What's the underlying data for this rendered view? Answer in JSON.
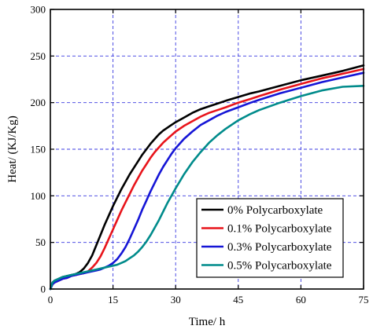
{
  "chart_data": {
    "type": "line",
    "title": "",
    "xlabel": "Time/ h",
    "ylabel": "Heat/ (KJ/Kg)",
    "xlim": [
      0,
      75
    ],
    "ylim": [
      0,
      300
    ],
    "xticks": [
      0,
      15,
      30,
      45,
      60,
      75
    ],
    "yticks": [
      0,
      50,
      100,
      150,
      200,
      250,
      300
    ],
    "grid": "dashed-blue",
    "legend_position": "bottom-right",
    "series": [
      {
        "name": "0% Polycarboxylate",
        "color": "#000000",
        "x": [
          0,
          0.5,
          1,
          2,
          3,
          4,
          5,
          6,
          7,
          8,
          9,
          10,
          11,
          12,
          13,
          14,
          15,
          16,
          17,
          18,
          19,
          20,
          21,
          22,
          23,
          24,
          25,
          26,
          27,
          28,
          29,
          30,
          32,
          34,
          36,
          38,
          40,
          42,
          45,
          48,
          50,
          55,
          60,
          65,
          70,
          75
        ],
        "y": [
          0,
          7,
          9,
          11,
          13,
          14,
          15,
          16,
          18,
          22,
          28,
          36,
          47,
          58,
          69,
          79,
          89,
          98,
          107,
          115,
          123,
          130,
          137,
          144,
          150,
          156,
          161,
          166,
          170,
          173,
          176,
          179,
          184,
          189,
          193,
          196,
          199,
          202,
          206,
          210,
          212,
          218,
          224,
          229,
          234,
          240
        ]
      },
      {
        "name": "0.1% Polycarboxylate",
        "color": "#e8141b",
        "x": [
          0,
          0.5,
          1,
          2,
          3,
          4,
          5,
          6,
          7,
          8,
          9,
          10,
          11,
          12,
          13,
          14,
          15,
          16,
          17,
          18,
          19,
          20,
          21,
          22,
          23,
          24,
          25,
          26,
          27,
          28,
          29,
          30,
          32,
          34,
          36,
          38,
          40,
          42,
          45,
          48,
          50,
          55,
          60,
          65,
          70,
          75
        ],
        "y": [
          0,
          5,
          7,
          9,
          11,
          12,
          14,
          15,
          16,
          17,
          19,
          23,
          28,
          35,
          44,
          54,
          64,
          74,
          84,
          93,
          102,
          111,
          119,
          127,
          134,
          141,
          147,
          152,
          157,
          161,
          165,
          169,
          175,
          180,
          185,
          189,
          192,
          195,
          200,
          204,
          207,
          214,
          220,
          226,
          231,
          236
        ]
      },
      {
        "name": "0.3% Polycarboxylate",
        "color": "#1515d6",
        "x": [
          0,
          0.5,
          1,
          2,
          3,
          4,
          5,
          6,
          7,
          8,
          9,
          10,
          11,
          12,
          13,
          14,
          15,
          16,
          17,
          18,
          19,
          20,
          21,
          22,
          23,
          24,
          25,
          26,
          27,
          28,
          29,
          30,
          32,
          34,
          36,
          38,
          40,
          42,
          45,
          48,
          50,
          55,
          60,
          65,
          70,
          75
        ],
        "y": [
          0,
          5,
          7,
          9,
          11,
          12,
          14,
          15,
          16,
          17,
          18,
          19,
          20,
          21,
          23,
          25,
          28,
          32,
          38,
          45,
          54,
          64,
          74,
          85,
          95,
          105,
          114,
          123,
          131,
          138,
          145,
          151,
          161,
          169,
          176,
          181,
          186,
          190,
          195,
          200,
          203,
          210,
          216,
          222,
          227,
          232
        ]
      },
      {
        "name": "0.5% Polycarboxylate",
        "color": "#008b8b",
        "x": [
          0,
          0.5,
          1,
          2,
          3,
          4,
          5,
          6,
          7,
          8,
          9,
          10,
          11,
          12,
          13,
          14,
          15,
          16,
          17,
          18,
          19,
          20,
          21,
          22,
          23,
          24,
          25,
          26,
          27,
          28,
          29,
          30,
          32,
          34,
          36,
          38,
          40,
          42,
          45,
          48,
          50,
          55,
          60,
          65,
          70,
          75
        ],
        "y": [
          0,
          7,
          9,
          11,
          13,
          14,
          15,
          16,
          17,
          18,
          19,
          20,
          21,
          22,
          23,
          24,
          25,
          26,
          28,
          30,
          33,
          36,
          40,
          45,
          51,
          58,
          66,
          74,
          83,
          92,
          100,
          108,
          123,
          136,
          147,
          157,
          165,
          172,
          181,
          188,
          192,
          200,
          207,
          213,
          217,
          218
        ]
      }
    ]
  }
}
